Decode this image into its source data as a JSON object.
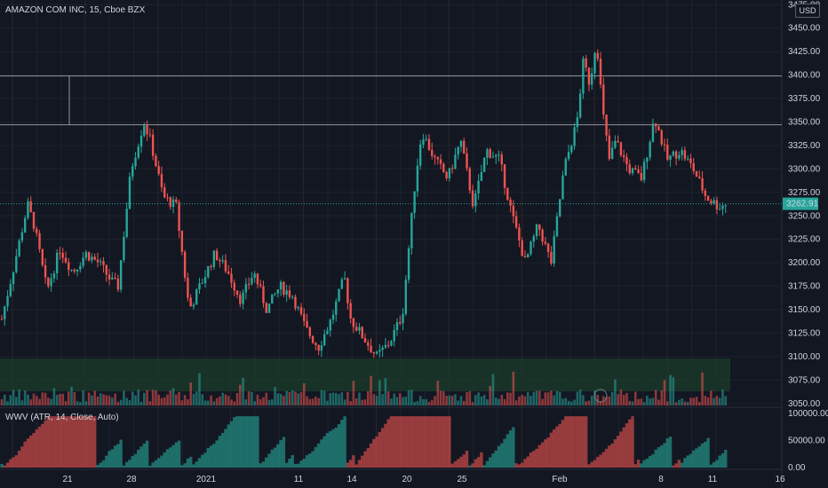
{
  "header": {
    "symbol_title": "AMAZON COM INC, 15, Cboe BZX",
    "currency_button": "USD"
  },
  "indicator": {
    "title": "WWV (ATR, 14, Close, Auto)"
  },
  "colors": {
    "background": "#131722",
    "grid": "#1e222d",
    "up": "#26a69a",
    "down": "#ef5350",
    "text": "#d1d4dc",
    "price_tag": "#26a69a",
    "zone": "#1b3a2a",
    "hline": "#b2b5be"
  },
  "chart_data": {
    "type": "line",
    "title": "AMAZON COM INC, 15, Cboe BZX",
    "price_axis": {
      "ticks": [
        "3475.00",
        "3450.00",
        "3425.00",
        "3400.00",
        "3375.00",
        "3350.00",
        "3325.00",
        "3300.00",
        "3275.00",
        "3250.00",
        "3225.00",
        "3200.00",
        "3175.00",
        "3150.00",
        "3125.00",
        "3100.00",
        "3075.00",
        "3050.00"
      ],
      "range": [
        3047,
        3480
      ]
    },
    "time_axis": {
      "ticks": [
        "21",
        "28",
        "2021",
        "11",
        "14",
        "20",
        "25",
        "Feb",
        "8",
        "11",
        "16"
      ]
    },
    "last_price": "3262.91",
    "last_price_value": 3262.91,
    "horizontal_levels": [
      3399,
      3347
    ],
    "demand_zone": [
      3063,
      3098
    ],
    "price_anchors": [
      [
        0,
        3140
      ],
      [
        2,
        3200
      ],
      [
        4,
        3262
      ],
      [
        5,
        3240
      ],
      [
        7,
        3170
      ],
      [
        9,
        3215
      ],
      [
        11,
        3190
      ],
      [
        13,
        3210
      ],
      [
        15,
        3200
      ],
      [
        17,
        3180
      ],
      [
        18,
        3175
      ],
      [
        20,
        3300
      ],
      [
        22,
        3350
      ],
      [
        23,
        3330
      ],
      [
        25,
        3270
      ],
      [
        27,
        3260
      ],
      [
        29,
        3150
      ],
      [
        31,
        3180
      ],
      [
        33,
        3210
      ],
      [
        35,
        3190
      ],
      [
        37,
        3160
      ],
      [
        39,
        3190
      ],
      [
        41,
        3150
      ],
      [
        43,
        3175
      ],
      [
        45,
        3165
      ],
      [
        47,
        3130
      ],
      [
        49,
        3110
      ],
      [
        51,
        3140
      ],
      [
        53,
        3185
      ],
      [
        54,
        3140
      ],
      [
        56,
        3120
      ],
      [
        58,
        3100
      ],
      [
        60,
        3115
      ],
      [
        62,
        3145
      ],
      [
        64,
        3290
      ],
      [
        65,
        3340
      ],
      [
        67,
        3310
      ],
      [
        69,
        3290
      ],
      [
        71,
        3330
      ],
      [
        73,
        3260
      ],
      [
        75,
        3320
      ],
      [
        77,
        3310
      ],
      [
        79,
        3250
      ],
      [
        81,
        3200
      ],
      [
        83,
        3240
      ],
      [
        85,
        3200
      ],
      [
        87,
        3300
      ],
      [
        89,
        3350
      ],
      [
        90,
        3415
      ],
      [
        91,
        3390
      ],
      [
        92,
        3440
      ],
      [
        93,
        3360
      ],
      [
        94,
        3310
      ],
      [
        95,
        3330
      ],
      [
        97,
        3300
      ],
      [
        99,
        3290
      ],
      [
        101,
        3355
      ],
      [
        103,
        3310
      ],
      [
        105,
        3320
      ],
      [
        107,
        3300
      ],
      [
        109,
        3270
      ],
      [
        111,
        3260
      ],
      [
        112,
        3262.91
      ]
    ],
    "wwv_axis": {
      "ticks": [
        "100000.00",
        "50000.00",
        "0.00"
      ],
      "range": [
        0,
        110000
      ]
    }
  }
}
